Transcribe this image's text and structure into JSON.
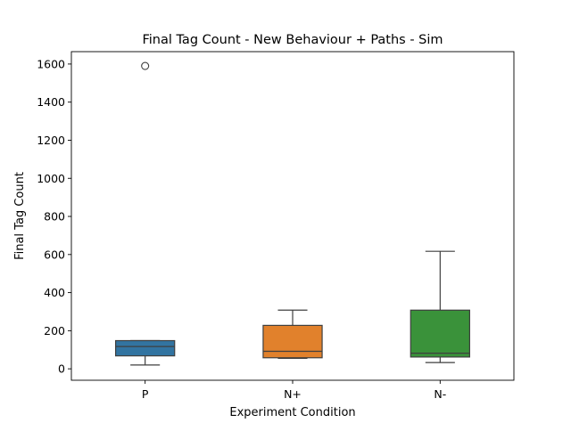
{
  "chart_data": {
    "type": "box",
    "title": "Final Tag Count - New Behaviour + Paths - Sim",
    "xlabel": "Experiment Condition",
    "ylabel": "Final Tag Count",
    "categories": [
      "P",
      "N+",
      "N-"
    ],
    "ylim": [
      -60,
      1665
    ],
    "yticks": [
      0,
      200,
      400,
      600,
      800,
      1000,
      1200,
      1400,
      1600
    ],
    "grid": false,
    "legend": "none",
    "boxes": [
      {
        "category": "P",
        "whisker_low": 20,
        "q1": 68,
        "median": 117,
        "q3": 148,
        "whisker_high": 148,
        "outliers": [
          1590
        ],
        "color": "#3274a1"
      },
      {
        "category": "N+",
        "whisker_low": 55,
        "q1": 58,
        "median": 92,
        "q3": 228,
        "whisker_high": 308,
        "outliers": [],
        "color": "#e1812c"
      },
      {
        "category": "N-",
        "whisker_low": 33,
        "q1": 62,
        "median": 82,
        "q3": 308,
        "whisker_high": 617,
        "outliers": [],
        "color": "#3a923a"
      }
    ]
  }
}
